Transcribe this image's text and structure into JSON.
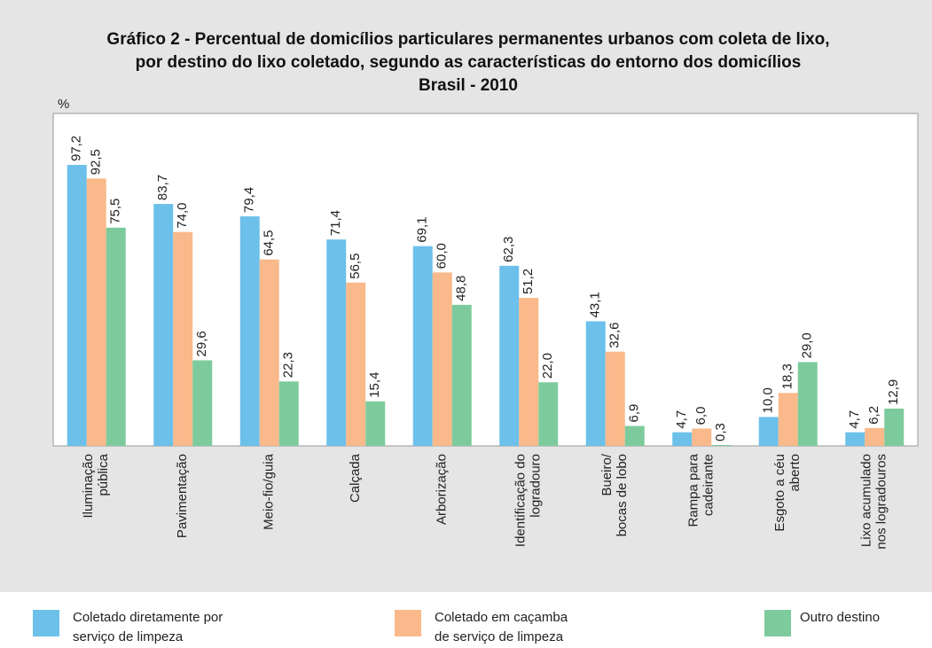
{
  "chart_data": {
    "type": "bar",
    "title": [
      "Gráfico 2 - Percentual de domicílios particulares permanentes urbanos com coleta de lixo,",
      "por destino do lixo coletado, segundo as características do entorno dos domicílios",
      "Brasil - 2010"
    ],
    "y_label": "%",
    "categories": [
      [
        "Iluminação",
        "pública"
      ],
      [
        "Pavimentação"
      ],
      [
        "Meio-fio/guia"
      ],
      [
        "Calçada"
      ],
      [
        "Arborização"
      ],
      [
        "Identificação do",
        "logradouro"
      ],
      [
        "Bueiro/",
        "bocas de lobo"
      ],
      [
        "Rampa para",
        "cadeirante"
      ],
      [
        "Esgoto a céu",
        "aberto"
      ],
      [
        "Lixo acumulado",
        "nos logradouros"
      ]
    ],
    "ylim": [
      0,
      115
    ],
    "series": [
      {
        "name": [
          "Coletado diretamente por",
          "serviço de limpeza"
        ],
        "color": "#6cc0ea",
        "values": [
          97.2,
          83.7,
          79.4,
          71.4,
          69.1,
          62.3,
          43.1,
          4.7,
          10.0,
          4.7
        ],
        "value_labels": [
          "97,2",
          "83,7",
          "79,4",
          "71,4",
          "69,1",
          "62,3",
          "43,1",
          "4,7",
          "10,0",
          "4,7"
        ]
      },
      {
        "name": [
          "Coletado em caçamba",
          "de serviço de limpeza"
        ],
        "color": "#f9b98a",
        "values": [
          92.5,
          74.0,
          64.5,
          56.5,
          60.0,
          51.2,
          32.6,
          6.0,
          18.3,
          6.2
        ],
        "value_labels": [
          "92,5",
          "74,0",
          "64,5",
          "56,5",
          "60,0",
          "51,2",
          "32,6",
          "6,0",
          "18,3",
          "6,2"
        ]
      },
      {
        "name": [
          "Outro destino"
        ],
        "color": "#7dcb9c",
        "values": [
          75.5,
          29.6,
          22.3,
          15.4,
          48.8,
          22.0,
          6.9,
          0.3,
          29.0,
          12.9
        ],
        "value_labels": [
          "75,5",
          "29,6",
          "22,3",
          "15,4",
          "48,8",
          "22,0",
          "6,9",
          "0,3",
          "29,0",
          "12,9"
        ]
      }
    ]
  }
}
